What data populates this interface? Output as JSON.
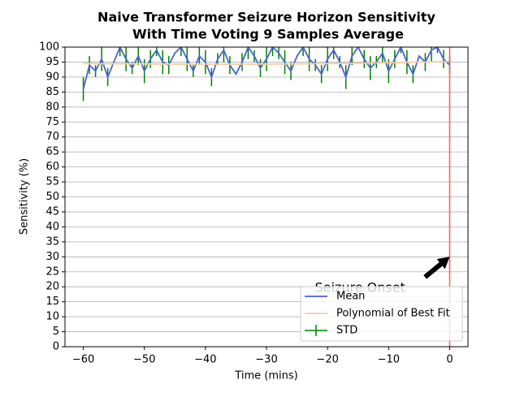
{
  "chart_data": {
    "type": "line",
    "title": "Naive Transformer Seizure Horizon Sensitivity",
    "subtitle": "With Time Voting 9 Samples Average",
    "x_label": "Time (mins)",
    "y_label": "Sensitivity (%)",
    "x": [
      -60,
      -59,
      -58,
      -57,
      -56,
      -55,
      -54,
      -53,
      -52,
      -51,
      -50,
      -49,
      -48,
      -47,
      -46,
      -45,
      -44,
      -43,
      -42,
      -41,
      -40,
      -39,
      -38,
      -37,
      -36,
      -35,
      -34,
      -33,
      -32,
      -31,
      -30,
      -29,
      -28,
      -27,
      -26,
      -25,
      -24,
      -23,
      -22,
      -21,
      -20,
      -19,
      -18,
      -17,
      -16,
      -15,
      -14,
      -13,
      -12,
      -11,
      -10,
      -9,
      -8,
      -7,
      -6,
      -5,
      -4,
      -3,
      -2,
      -1,
      0
    ],
    "series": [
      {
        "name": "Mean",
        "color": "#4a63d8",
        "values": [
          86,
          94,
          92,
          96,
          90,
          95,
          100,
          96,
          93,
          97,
          92,
          96,
          99,
          95,
          94,
          98,
          100,
          96,
          92,
          97,
          95,
          90,
          96,
          99,
          94,
          91,
          95,
          100,
          97,
          93,
          96,
          100,
          98,
          95,
          92,
          97,
          100,
          96,
          94,
          91,
          96,
          99,
          95,
          90,
          97,
          100,
          96,
          93,
          95,
          98,
          92,
          96,
          100,
          95,
          91,
          97,
          95,
          99,
          100,
          96,
          94
        ],
        "errors": [
          4,
          3,
          2,
          4,
          3,
          0,
          3,
          4,
          2,
          3,
          4,
          3,
          2,
          4,
          3,
          0,
          3,
          4,
          2,
          3,
          4,
          3,
          2,
          4,
          3,
          0,
          3,
          4,
          2,
          3,
          4,
          3,
          2,
          4,
          3,
          0,
          3,
          4,
          2,
          3,
          4,
          3,
          2,
          4,
          3,
          0,
          3,
          4,
          2,
          3,
          4,
          3,
          2,
          4,
          3,
          0,
          3,
          4,
          2,
          3,
          3
        ],
        "error_name": "STD",
        "error_color": "#008000"
      },
      {
        "name": "Polynomial of Best Fit",
        "color": "#f3cd9c",
        "x": [
          -60,
          -50,
          -40,
          -30,
          -20,
          -10,
          0
        ],
        "values": [
          94.5,
          94.4,
          94.3,
          94.3,
          94.5,
          94.8,
          95.2
        ]
      }
    ],
    "vline": {
      "x": 0,
      "color": "#ff5555"
    },
    "annotation": {
      "text": "Seizure Onset",
      "xy": [
        0,
        30
      ],
      "xytext": [
        -20,
        20
      ]
    },
    "xlim": [
      -63,
      3
    ],
    "ylim": [
      0,
      100
    ],
    "xticks": [
      {
        "value": -60,
        "label": "−60"
      },
      {
        "value": -50,
        "label": "−50"
      },
      {
        "value": -40,
        "label": "−40"
      },
      {
        "value": -30,
        "label": "−30"
      },
      {
        "value": -20,
        "label": "−20"
      },
      {
        "value": -10,
        "label": "−10"
      },
      0
    ],
    "yticks": [
      0,
      5,
      10,
      15,
      20,
      25,
      30,
      35,
      40,
      45,
      50,
      55,
      60,
      65,
      70,
      75,
      80,
      85,
      90,
      95,
      100
    ],
    "grid": "y",
    "legend": "lower right"
  }
}
